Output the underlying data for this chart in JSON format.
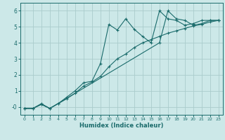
{
  "title": "",
  "xlabel": "Humidex (Indice chaleur)",
  "ylabel": "",
  "bg_color": "#cce8e8",
  "line_color": "#1a6b6b",
  "grid_color": "#aacccc",
  "xlim": [
    -0.5,
    23.5
  ],
  "ylim": [
    -0.5,
    6.5
  ],
  "xticks": [
    0,
    1,
    2,
    3,
    4,
    5,
    6,
    7,
    8,
    9,
    10,
    11,
    12,
    13,
    14,
    15,
    16,
    17,
    18,
    19,
    20,
    21,
    22,
    23
  ],
  "yticks": [
    0,
    1,
    2,
    3,
    4,
    5,
    6
  ],
  "ytick_labels": [
    "-0",
    "1",
    "2",
    "3",
    "4",
    "5",
    "6"
  ],
  "line1_x": [
    0,
    1,
    2,
    3,
    4,
    5,
    6,
    7,
    8,
    9,
    10,
    11,
    12,
    13,
    14,
    15,
    16,
    17,
    18,
    19,
    20,
    21,
    22,
    23
  ],
  "line1_y": [
    -0.1,
    -0.1,
    0.2,
    -0.1,
    0.2,
    0.6,
    1.0,
    1.5,
    1.6,
    2.7,
    5.15,
    4.8,
    5.5,
    4.85,
    4.4,
    4.0,
    6.0,
    5.5,
    5.4,
    5.1,
    5.2,
    5.4,
    5.4,
    5.4
  ],
  "line2_x": [
    0,
    1,
    2,
    3,
    4,
    5,
    6,
    7,
    8,
    9,
    10,
    11,
    12,
    13,
    14,
    15,
    16,
    17,
    18,
    19,
    20,
    21,
    22,
    23
  ],
  "line2_y": [
    -0.1,
    -0.1,
    0.15,
    -0.1,
    0.2,
    0.5,
    0.85,
    1.3,
    1.55,
    1.9,
    2.5,
    3.0,
    3.3,
    3.7,
    4.0,
    4.2,
    4.4,
    4.6,
    4.75,
    4.9,
    5.05,
    5.15,
    5.3,
    5.4
  ],
  "line3_x": [
    0,
    1,
    2,
    3,
    16,
    17,
    18,
    19,
    20,
    21,
    22,
    23
  ],
  "line3_y": [
    -0.1,
    -0.1,
    0.15,
    -0.1,
    4.0,
    6.0,
    5.5,
    5.4,
    5.1,
    5.2,
    5.4,
    5.4
  ]
}
